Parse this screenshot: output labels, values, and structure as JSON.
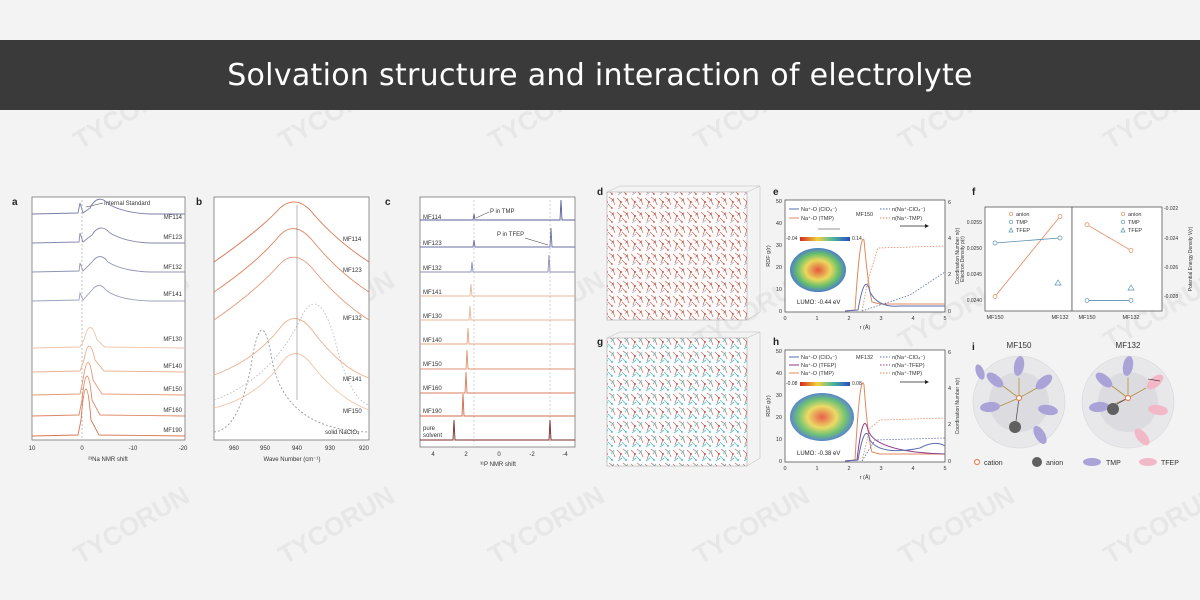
{
  "banner": {
    "title": "Solvation structure and interaction of electrolyte"
  },
  "watermark": {
    "text": "TYCORUN"
  },
  "colors": {
    "banner_bg": "#3a3a3a",
    "orange": "#e0885c",
    "blue": "#5a6fb0",
    "gray_line": "#8a8a9a"
  },
  "panels": {
    "a": {
      "letter": "a",
      "annotation": "Internal Standard",
      "samples": [
        "MF114",
        "MF123",
        "MF132",
        "MF141",
        "MF130",
        "MF140",
        "MF150",
        "MF160",
        "MF190"
      ],
      "ticks": [
        "10",
        "0",
        "-10",
        "-20"
      ],
      "xlabel": "²³Na NMR shift"
    },
    "b": {
      "letter": "b",
      "samples": [
        "MF114",
        "MF123",
        "MF132",
        "MF141",
        "MF150"
      ],
      "extra_label": "solid NaClO₄",
      "ticks": [
        "960",
        "950",
        "940",
        "930",
        "920"
      ],
      "xlabel": "Wave Number (cm⁻¹)"
    },
    "c": {
      "letter": "c",
      "samples": [
        "MF114",
        "MF123",
        "MF132",
        "MF141",
        "MF130",
        "MF140",
        "MF150",
        "MF160",
        "MF190"
      ],
      "extra_label_1": "pure",
      "extra_label_2": "solvent",
      "annotation_1": "P in TMP",
      "annotation_2": "P in TFEP",
      "ticks": [
        "4",
        "2",
        "0",
        "-2",
        "-4"
      ],
      "xlabel": "³¹P NMR shift"
    },
    "d": {
      "letter": "d"
    },
    "g": {
      "letter": "g"
    },
    "e": {
      "letter": "e",
      "legend_left": [
        "Na⁺-O (ClO₄⁻)",
        "Na⁺-O (TMP)"
      ],
      "legend_right": [
        "n(Na⁺-ClO₄⁻)",
        "n(Na⁺-TMP)"
      ],
      "sample": "MF150",
      "scale_min": "-0.04",
      "scale_max": "0.14",
      "lumo": "LUMO: -0.44 eV",
      "ylabel": "RDF g(r)",
      "ylabel_right": "Coordination Number n(r)",
      "xlabel": "r (Å)",
      "xticks": [
        "0",
        "1",
        "2",
        "3",
        "4",
        "5"
      ],
      "yticks_left": [
        "0",
        "10",
        "20",
        "30",
        "40",
        "50"
      ],
      "yticks_right": [
        "0",
        "2",
        "4",
        "6"
      ]
    },
    "h": {
      "letter": "h",
      "legend_left": [
        "Na⁺-O (ClO₄⁻)",
        "Na⁺-O (TFEP)",
        "Na⁺-O (TMP)"
      ],
      "legend_right": [
        "n(Na⁺-ClO₄⁻)",
        "n(Na⁺-TFEP)",
        "n(Na⁺-TMP)"
      ],
      "sample": "MF132",
      "scale_min": "-0.08",
      "scale_max": "0.08",
      "lumo": "LUMO: -0.38 eV",
      "ylabel": "RDF g(r)",
      "ylabel_right": "Coordination Number n(r)",
      "xlabel": "r (Å)",
      "xticks": [
        "0",
        "1",
        "2",
        "3",
        "4",
        "5"
      ],
      "yticks_left": [
        "0",
        "10",
        "20",
        "30",
        "40",
        "50"
      ],
      "yticks_right": [
        "0",
        "2",
        "4",
        "6"
      ]
    },
    "f": {
      "letter": "f",
      "legend": [
        "anion",
        "TMP",
        "TFEP"
      ],
      "ylabel_left": "Electron Density ρ(r)",
      "ylabel_right": "Potential Energy Density V(r)",
      "yticks_left": [
        "0.0255",
        "0.0250",
        "0.0245",
        "0.0240"
      ],
      "yticks_right": [
        "-0.022",
        "-0.024",
        "-0.026",
        "-0.028"
      ],
      "xticks": [
        "MF150",
        "MF132",
        "MF150",
        "MF132"
      ]
    },
    "i": {
      "letter": "i",
      "titles": [
        "MF150",
        "MF132"
      ],
      "legend": [
        "cation",
        "anion",
        "TMP",
        "TFEP"
      ]
    }
  },
  "chart_data": [
    {
      "type": "line",
      "panel": "f-left",
      "categories": [
        "MF150",
        "MF132"
      ],
      "series": [
        {
          "name": "anion",
          "values": [
            0.02405,
            0.02565
          ]
        },
        {
          "name": "TMP",
          "values": [
            0.02512,
            0.02522
          ]
        }
      ],
      "ylim": [
        0.0238,
        0.0258
      ],
      "ylabel": "Electron Density ρ(r)"
    },
    {
      "type": "line",
      "panel": "f-right",
      "categories": [
        "MF150",
        "MF132"
      ],
      "series": [
        {
          "name": "anion",
          "values": [
            -0.0231,
            -0.0249
          ]
        },
        {
          "name": "TMP",
          "values": [
            -0.0284,
            -0.0284
          ]
        }
      ],
      "ylim": [
        -0.029,
        -0.022
      ],
      "ylabel": "Potential Energy Density V(r)"
    }
  ]
}
